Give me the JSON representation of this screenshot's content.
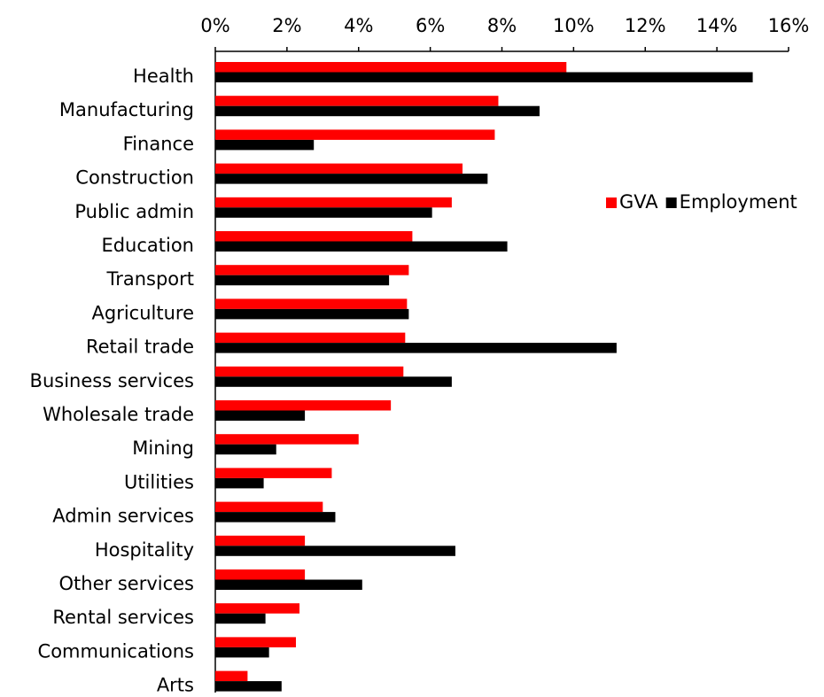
{
  "chart_data": {
    "type": "bar",
    "orientation": "horizontal",
    "title": "",
    "xlabel": "",
    "ylabel": "",
    "xlim": [
      0,
      16
    ],
    "x_ticks": [
      {
        "value": 0,
        "label": "0%"
      },
      {
        "value": 2,
        "label": "2%"
      },
      {
        "value": 4,
        "label": "4%"
      },
      {
        "value": 6,
        "label": "6%"
      },
      {
        "value": 8,
        "label": "8%"
      },
      {
        "value": 10,
        "label": "10%"
      },
      {
        "value": 12,
        "label": "12%"
      },
      {
        "value": 14,
        "label": "14%"
      },
      {
        "value": 16,
        "label": "16%"
      }
    ],
    "axis_position": "top",
    "grid": false,
    "legend_placement": "right",
    "categories": [
      "Health",
      "Manufacturing",
      "Finance",
      "Construction",
      "Public admin",
      "Education",
      "Transport",
      "Agriculture",
      "Retail trade",
      "Business services",
      "Wholesale trade",
      "Mining",
      "Utilities",
      "Admin services",
      "Hospitality",
      "Other services",
      "Rental services",
      "Communications",
      "Arts"
    ],
    "series": [
      {
        "name": "GVA",
        "color": "#ff0000",
        "values": [
          9.8,
          7.9,
          7.8,
          6.9,
          6.6,
          5.5,
          5.4,
          5.35,
          5.3,
          5.25,
          4.9,
          4.0,
          3.25,
          3.0,
          2.5,
          2.5,
          2.35,
          2.25,
          0.9
        ]
      },
      {
        "name": "Employment",
        "color": "#000000",
        "values": [
          15.0,
          9.05,
          2.75,
          7.6,
          6.05,
          8.15,
          4.85,
          5.4,
          11.2,
          6.6,
          2.5,
          1.7,
          1.35,
          3.35,
          6.7,
          4.1,
          1.4,
          1.5,
          1.85
        ]
      }
    ]
  }
}
